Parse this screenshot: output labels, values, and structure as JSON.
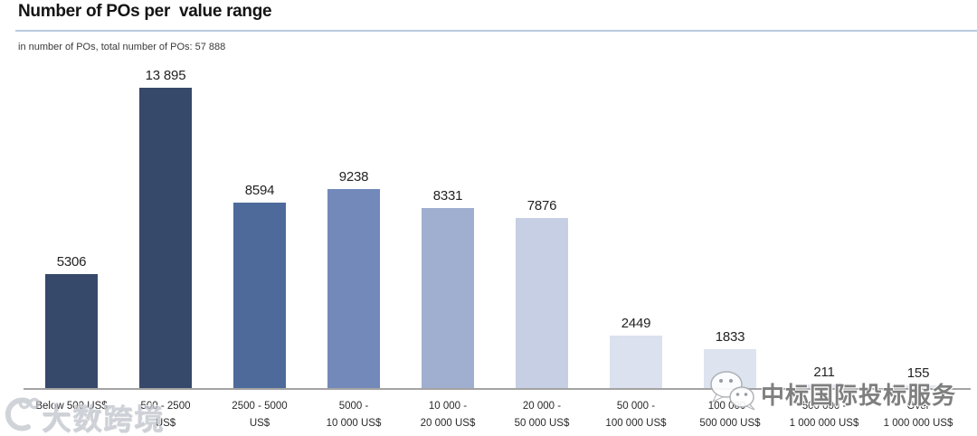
{
  "header": {
    "title": "Number of POs per  value range",
    "subtitle": "in number of POs, total number of POs: 57 888"
  },
  "chart_data": {
    "type": "bar",
    "title": "Number of POs per  value range",
    "units_note": "in number of POs",
    "total_number_of_pos": "57 888",
    "categories": [
      "Below 500 US$",
      "500 - 2500 US$",
      "2500 - 5000 US$",
      "5000 - 10 000 US$",
      "10 000 - 20 000 US$",
      "20 000 - 50 000 US$",
      "50 000 - 100 000 US$",
      "100 000 - 500 000 US$",
      "500 000 - 1 000 000 US$",
      "Over 1 000 000 US$"
    ],
    "category_lines": [
      [
        "Below 500 US$"
      ],
      [
        "500 - 2500",
        "US$"
      ],
      [
        "2500 - 5000",
        "US$"
      ],
      [
        "5000 -",
        "10 000 US$"
      ],
      [
        "10 000 -",
        "20 000 US$"
      ],
      [
        "20 000 -",
        "50 000 US$"
      ],
      [
        "50 000 -",
        "100 000 US$"
      ],
      [
        "100 000 -",
        "500 000 US$"
      ],
      [
        "500 000 -",
        "1 000 000 US$"
      ],
      [
        "Over",
        "1 000 000 US$"
      ]
    ],
    "values": [
      5306,
      13895,
      8594,
      9238,
      8331,
      7876,
      2449,
      1833,
      211,
      155
    ],
    "value_labels": [
      "5306",
      "13 895",
      "8594",
      "9238",
      "8331",
      "7876",
      "2449",
      "1833",
      "211",
      "155"
    ],
    "bar_colors": [
      "#36496b",
      "#36496b",
      "#4d6a9b",
      "#7289ba",
      "#a0aecf",
      "#c6cfe3",
      "#dbe1ee",
      "#dde3ef",
      "#e3e7f2",
      "#e4e8f3"
    ],
    "ylim": [
      0,
      13895
    ],
    "xlabel": "",
    "ylabel": "in number of POs",
    "grid": false,
    "legend": "none"
  },
  "watermarks": {
    "logo_text": "大数跨境",
    "stamp_text": "中标国际投标服务"
  },
  "colors": {
    "title_rule": "#b9cbdd",
    "axis_line": "#a3a3a3"
  }
}
